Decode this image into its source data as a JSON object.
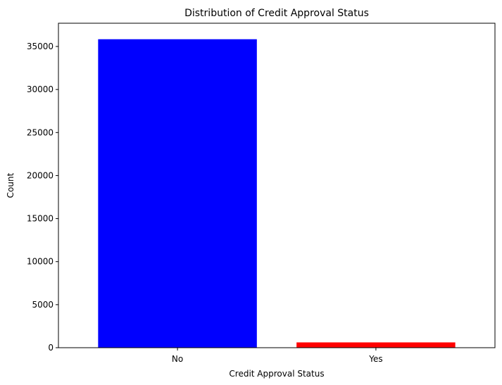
{
  "chart_data": {
    "type": "bar",
    "title": "Distribution of Credit Approval Status",
    "xlabel": "Credit Approval Status",
    "ylabel": "Count",
    "categories": [
      "No",
      "Yes"
    ],
    "values": [
      35841,
      616
    ],
    "colors": [
      "#0000ff",
      "#ff0000"
    ],
    "ylim": [
      0,
      37700
    ],
    "yticks": [
      0,
      5000,
      10000,
      15000,
      20000,
      25000,
      30000,
      35000
    ],
    "grid": false,
    "legend": "none"
  }
}
